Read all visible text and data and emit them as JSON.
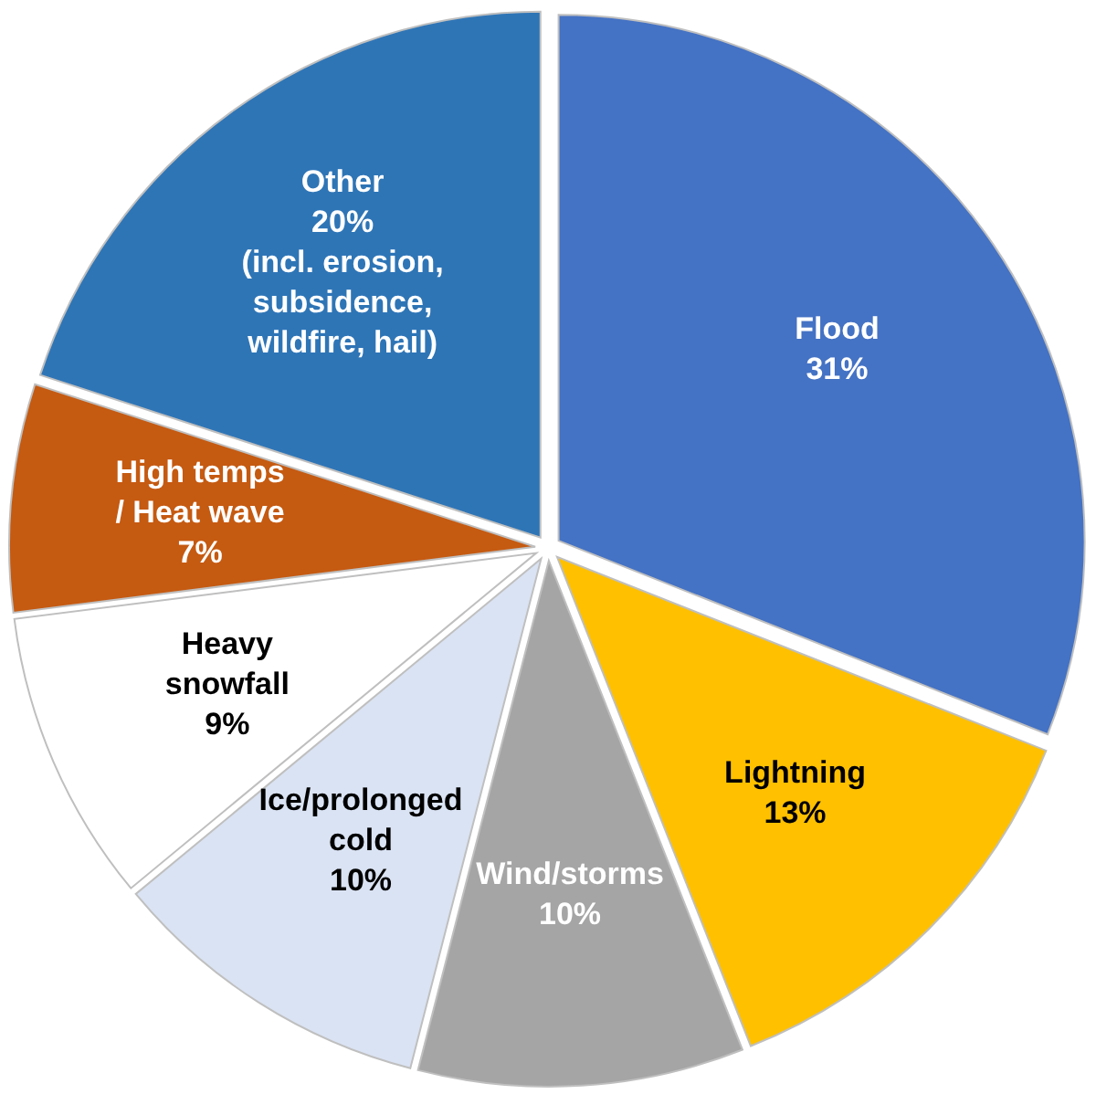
{
  "chart_data": {
    "type": "pie",
    "categories": [
      "Flood",
      "Lightning",
      "Wind/storms",
      "Ice/prolonged cold",
      "Heavy snowfall",
      "High temps / Heat wave",
      "Other\n(incl. erosion, subsidence, wildfire, hail)"
    ],
    "values": [
      31,
      13,
      10,
      10,
      9,
      7,
      20
    ],
    "colors": [
      "#4472c4",
      "#ffc000",
      "#a5a5a5",
      "#dae3f3",
      "#ffffff",
      "#c55a11",
      "#2e75b6"
    ],
    "value_labels": [
      "31%",
      "13%",
      "10%",
      "10%",
      "9%",
      "7%",
      "20%"
    ]
  }
}
